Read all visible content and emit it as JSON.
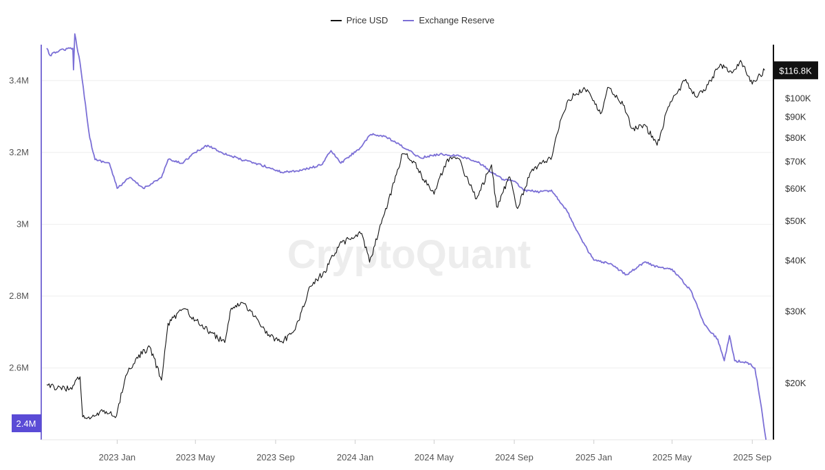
{
  "chart_data": {
    "type": "line",
    "watermark": "CryptoQuant",
    "legend": {
      "placement": "top-center"
    },
    "grid": true,
    "x": {
      "range": [
        "2022-09-15",
        "2025-09-25"
      ],
      "tick_labels": [
        "2023 Jan",
        "2023 May",
        "2023 Sep",
        "2024 Jan",
        "2024 May",
        "2024 Sep",
        "2025 Jan",
        "2025 May",
        "2025 Sep"
      ],
      "tick_dates": [
        "2023-01-01",
        "2023-05-01",
        "2023-09-01",
        "2024-01-01",
        "2024-05-01",
        "2024-09-01",
        "2025-01-01",
        "2025-05-01",
        "2025-09-01"
      ]
    },
    "y_left": {
      "scale": "linear",
      "range": [
        2400000,
        3500000
      ],
      "tick_values": [
        2600000,
        2800000,
        3000000,
        3200000,
        3400000
      ],
      "tick_labels": [
        "2.6M",
        "2.8M",
        "3M",
        "3.2M",
        "3.4M"
      ],
      "current_label": "2.4M",
      "color": "#7b6fd6"
    },
    "y_right": {
      "scale": "log",
      "range": [
        14500,
        135000
      ],
      "tick_values": [
        20000,
        30000,
        40000,
        50000,
        60000,
        70000,
        80000,
        90000,
        100000
      ],
      "tick_labels": [
        "$20K",
        "$30K",
        "$40K",
        "$50K",
        "$60K",
        "$70K",
        "$80K",
        "$90K",
        "$100K"
      ],
      "current_label": "$116.8K"
    },
    "series": [
      {
        "name": "Price USD",
        "axis": "right",
        "color": "#111111",
        "points": [
          [
            "2022-09-15",
            19800
          ],
          [
            "2022-10-01",
            19400
          ],
          [
            "2022-10-20",
            19300
          ],
          [
            "2022-11-05",
            20700
          ],
          [
            "2022-11-09",
            16500
          ],
          [
            "2022-11-20",
            16300
          ],
          [
            "2022-12-10",
            17000
          ],
          [
            "2022-12-31",
            16600
          ],
          [
            "2023-01-14",
            20800
          ],
          [
            "2023-01-31",
            23100
          ],
          [
            "2023-02-20",
            24500
          ],
          [
            "2023-03-10",
            20300
          ],
          [
            "2023-03-20",
            28000
          ],
          [
            "2023-04-14",
            30400
          ],
          [
            "2023-05-01",
            28500
          ],
          [
            "2023-05-25",
            26500
          ],
          [
            "2023-06-15",
            25100
          ],
          [
            "2023-06-25",
            30500
          ],
          [
            "2023-07-13",
            31400
          ],
          [
            "2023-08-01",
            29200
          ],
          [
            "2023-08-20",
            26100
          ],
          [
            "2023-09-11",
            25200
          ],
          [
            "2023-10-01",
            27000
          ],
          [
            "2023-10-24",
            34500
          ],
          [
            "2023-11-15",
            37500
          ],
          [
            "2023-12-08",
            43800
          ],
          [
            "2024-01-11",
            46500
          ],
          [
            "2024-01-23",
            39500
          ],
          [
            "2024-02-15",
            52000
          ],
          [
            "2024-03-01",
            62000
          ],
          [
            "2024-03-14",
            73000
          ],
          [
            "2024-04-01",
            69500
          ],
          [
            "2024-04-15",
            63000
          ],
          [
            "2024-05-01",
            58000
          ],
          [
            "2024-05-20",
            70000
          ],
          [
            "2024-06-07",
            71000
          ],
          [
            "2024-06-25",
            61000
          ],
          [
            "2024-07-05",
            56500
          ],
          [
            "2024-07-28",
            68500
          ],
          [
            "2024-08-05",
            54000
          ],
          [
            "2024-08-25",
            64000
          ],
          [
            "2024-09-06",
            53500
          ],
          [
            "2024-09-27",
            66000
          ],
          [
            "2024-10-29",
            72000
          ],
          [
            "2024-11-12",
            89000
          ],
          [
            "2024-11-22",
            98500
          ],
          [
            "2024-12-17",
            106000
          ],
          [
            "2025-01-13",
            92000
          ],
          [
            "2025-01-22",
            106000
          ],
          [
            "2025-02-15",
            96000
          ],
          [
            "2025-03-01",
            84000
          ],
          [
            "2025-03-20",
            86000
          ],
          [
            "2025-04-08",
            76500
          ],
          [
            "2025-04-25",
            95000
          ],
          [
            "2025-05-22",
            111000
          ],
          [
            "2025-06-05",
            101000
          ],
          [
            "2025-06-20",
            104000
          ],
          [
            "2025-07-14",
            121000
          ],
          [
            "2025-08-01",
            115000
          ],
          [
            "2025-08-14",
            123500
          ],
          [
            "2025-09-01",
            108000
          ],
          [
            "2025-09-20",
            116800
          ]
        ]
      },
      {
        "name": "Exchange Reserve",
        "axis": "left",
        "color": "#7b6fd6",
        "points": [
          [
            "2022-09-15",
            3490000
          ],
          [
            "2022-09-20",
            3470000
          ],
          [
            "2022-10-05",
            3485000
          ],
          [
            "2022-10-25",
            3490000
          ],
          [
            "2022-10-26",
            3430000
          ],
          [
            "2022-10-28",
            3530000
          ],
          [
            "2022-11-05",
            3450000
          ],
          [
            "2022-11-20",
            3240000
          ],
          [
            "2022-11-28",
            3180000
          ],
          [
            "2022-12-20",
            3170000
          ],
          [
            "2023-01-01",
            3100000
          ],
          [
            "2023-01-20",
            3130000
          ],
          [
            "2023-02-10",
            3100000
          ],
          [
            "2023-03-10",
            3130000
          ],
          [
            "2023-03-20",
            3180000
          ],
          [
            "2023-04-10",
            3170000
          ],
          [
            "2023-05-01",
            3200000
          ],
          [
            "2023-05-20",
            3220000
          ],
          [
            "2023-06-10",
            3200000
          ],
          [
            "2023-07-10",
            3180000
          ],
          [
            "2023-08-10",
            3165000
          ],
          [
            "2023-09-10",
            3145000
          ],
          [
            "2023-10-10",
            3150000
          ],
          [
            "2023-11-10",
            3165000
          ],
          [
            "2023-11-25",
            3205000
          ],
          [
            "2023-12-10",
            3170000
          ],
          [
            "2024-01-10",
            3215000
          ],
          [
            "2024-01-25",
            3250000
          ],
          [
            "2024-02-15",
            3245000
          ],
          [
            "2024-03-10",
            3220000
          ],
          [
            "2024-04-10",
            3185000
          ],
          [
            "2024-05-10",
            3195000
          ],
          [
            "2024-06-10",
            3190000
          ],
          [
            "2024-07-10",
            3170000
          ],
          [
            "2024-08-01",
            3140000
          ],
          [
            "2024-08-15",
            3125000
          ],
          [
            "2024-09-01",
            3120000
          ],
          [
            "2024-09-15",
            3095000
          ],
          [
            "2024-10-10",
            3090000
          ],
          [
            "2024-10-28",
            3095000
          ],
          [
            "2024-11-20",
            3040000
          ],
          [
            "2024-12-15",
            2950000
          ],
          [
            "2025-01-01",
            2900000
          ],
          [
            "2025-01-25",
            2890000
          ],
          [
            "2025-02-20",
            2860000
          ],
          [
            "2025-03-20",
            2895000
          ],
          [
            "2025-04-10",
            2880000
          ],
          [
            "2025-05-01",
            2875000
          ],
          [
            "2025-05-30",
            2815000
          ],
          [
            "2025-06-20",
            2720000
          ],
          [
            "2025-07-10",
            2680000
          ],
          [
            "2025-07-20",
            2620000
          ],
          [
            "2025-07-28",
            2690000
          ],
          [
            "2025-08-05",
            2620000
          ],
          [
            "2025-08-25",
            2615000
          ],
          [
            "2025-09-05",
            2600000
          ],
          [
            "2025-09-15",
            2490000
          ],
          [
            "2025-09-22",
            2400000
          ]
        ]
      }
    ]
  }
}
